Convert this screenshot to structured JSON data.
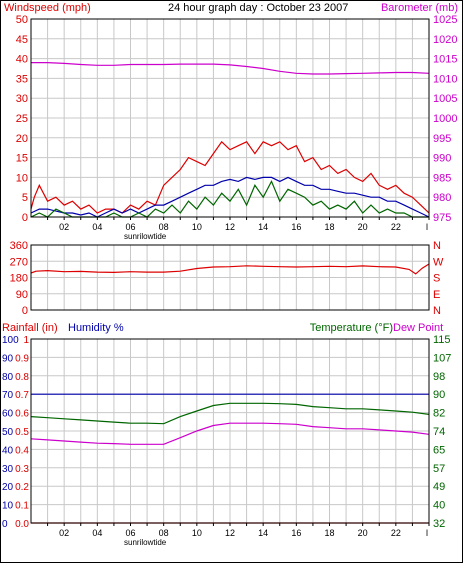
{
  "colors": {
    "red": "#dd0000",
    "blue": "#0000aa",
    "green": "#006600",
    "magenta": "#cc00cc",
    "grid": "#c8c8c8",
    "axis": "#000000"
  },
  "chart_data": [
    {
      "id": "wind_baro",
      "type": "line",
      "title": "24 hour graph day : October 23 2007",
      "left_label": "Windspeed (mph)",
      "right_label": "Barometer (mb)",
      "yleft_ticks": [
        "0",
        "5",
        "10",
        "15",
        "20",
        "25",
        "30",
        "35",
        "40",
        "45",
        "50"
      ],
      "yright_ticks": [
        "975",
        "980",
        "985",
        "990",
        "995",
        "1000",
        "1005",
        "1010",
        "1015",
        "1020",
        "1025"
      ],
      "x_ticks": [
        "02",
        "04",
        "06",
        "08",
        "10",
        "12",
        "14",
        "16",
        "18",
        "20",
        "22"
      ],
      "x_end_tick": "l",
      "x_sublabel": "sunrilowtide",
      "ylim_left": [
        0,
        50
      ],
      "ylim_right": [
        975,
        1025
      ],
      "xlim": [
        0,
        24
      ],
      "series": [
        {
          "key": "gust",
          "color_key": "red",
          "x": [
            0,
            0.2,
            0.5,
            1,
            1.5,
            2,
            2.5,
            3,
            3.5,
            4,
            4.5,
            5,
            5.5,
            6,
            6.5,
            7,
            7.5,
            8,
            8.5,
            9,
            9.5,
            10,
            10.5,
            11,
            11.5,
            12,
            12.5,
            13,
            13.5,
            14,
            14.5,
            15,
            15.5,
            16,
            16.5,
            17,
            17.5,
            18,
            18.5,
            19,
            19.5,
            20,
            20.5,
            21,
            21.5,
            22,
            22.5,
            23,
            23.5,
            24
          ],
          "values": [
            2,
            5,
            8,
            4,
            5,
            3,
            4,
            2,
            3,
            1,
            2,
            2,
            1,
            3,
            2,
            4,
            3,
            8,
            10,
            12,
            15,
            14,
            13,
            16,
            19,
            17,
            18,
            19,
            16,
            19,
            18,
            19,
            17,
            18,
            14,
            15,
            12,
            13,
            11,
            12,
            10,
            9,
            11,
            8,
            7,
            8,
            6,
            5,
            3,
            1
          ]
        },
        {
          "key": "wind",
          "color_key": "blue",
          "x": [
            0,
            0.5,
            1,
            1.5,
            2,
            2.5,
            3,
            3.5,
            4,
            4.5,
            5,
            5.5,
            6,
            6.5,
            7,
            7.5,
            8,
            8.5,
            9,
            9.5,
            10,
            10.5,
            11,
            11.5,
            12,
            12.5,
            13,
            13.5,
            14,
            14.5,
            15,
            15.5,
            16,
            16.5,
            17,
            17.5,
            18,
            18.5,
            19,
            19.5,
            20,
            20.5,
            21,
            21.5,
            22,
            22.5,
            23,
            23.5,
            24
          ],
          "values": [
            1,
            2,
            2,
            1.5,
            1,
            1,
            0.5,
            1,
            0,
            1,
            2,
            1,
            2,
            1,
            2,
            3,
            3,
            4,
            5,
            6,
            7,
            8,
            8,
            9,
            9.5,
            9,
            10,
            9.5,
            10,
            10,
            9,
            10,
            9,
            8,
            8,
            7,
            7,
            6.5,
            6,
            6,
            5.5,
            5,
            5,
            4,
            4,
            3,
            2,
            1,
            0
          ]
        },
        {
          "key": "low",
          "color_key": "green",
          "x": [
            0,
            0.5,
            1,
            1.5,
            2,
            2.5,
            3,
            3.5,
            4,
            4.5,
            5,
            5.5,
            6,
            6.5,
            7,
            7.5,
            8,
            8.5,
            9,
            9.5,
            10,
            10.5,
            11,
            11.5,
            12,
            12.5,
            13,
            13.5,
            14,
            14.5,
            15,
            15.5,
            16,
            16.5,
            17,
            17.5,
            18,
            18.5,
            19,
            19.5,
            20,
            20.5,
            21,
            21.5,
            22,
            22.5,
            23,
            23.5,
            24
          ],
          "values": [
            0,
            1,
            0,
            2,
            1,
            0,
            0,
            0,
            0,
            0,
            1,
            0,
            0,
            1,
            0,
            2,
            1,
            3,
            1,
            4,
            2,
            5,
            3,
            6,
            4,
            7,
            3,
            8,
            5,
            9,
            4,
            7,
            6,
            5,
            3,
            4,
            2,
            3,
            2,
            4,
            1,
            3,
            1,
            2,
            1,
            1,
            0,
            0,
            0
          ]
        },
        {
          "key": "barometer",
          "color_key": "magenta",
          "axis": "right",
          "x": [
            0,
            1,
            2,
            3,
            4,
            5,
            6,
            7,
            8,
            9,
            10,
            11,
            12,
            13,
            14,
            15,
            16,
            17,
            18,
            19,
            20,
            21,
            22,
            23,
            24
          ],
          "values": [
            1014,
            1014,
            1013.8,
            1013.5,
            1013.3,
            1013.3,
            1013.5,
            1013.5,
            1013.5,
            1013.6,
            1013.6,
            1013.6,
            1013.4,
            1013,
            1012.5,
            1011.8,
            1011.3,
            1011.1,
            1011.1,
            1011.2,
            1011.3,
            1011.4,
            1011.5,
            1011.5,
            1011.3
          ]
        }
      ]
    },
    {
      "id": "wind_dir",
      "type": "line",
      "left_ticks": [
        "0",
        "90",
        "180",
        "270",
        "360"
      ],
      "right_ticks": [
        "N",
        "E",
        "S",
        "W",
        "N"
      ],
      "ylim": [
        0,
        360
      ],
      "xlim": [
        0,
        24
      ],
      "series": [
        {
          "key": "direction",
          "color_key": "red",
          "x": [
            0,
            0.3,
            1,
            2,
            3,
            4,
            5,
            6,
            7,
            8,
            9,
            10,
            11,
            12,
            13,
            14,
            15,
            16,
            17,
            18,
            19,
            20,
            21,
            22,
            22.8,
            23.2,
            23.6,
            24
          ],
          "values": [
            205,
            215,
            218,
            212,
            214,
            210,
            208,
            212,
            210,
            210,
            215,
            230,
            238,
            240,
            245,
            242,
            240,
            238,
            240,
            242,
            240,
            244,
            240,
            238,
            225,
            200,
            232,
            255
          ]
        }
      ]
    },
    {
      "id": "temp_hum",
      "type": "line",
      "label_rain": "Rainfall (in)",
      "label_humidity": "Humidity %",
      "label_temp": "Temperature (°F)",
      "label_dew": "Dew Point",
      "humidity_ticks": [
        "0",
        "10",
        "20",
        "30",
        "40",
        "50",
        "60",
        "70",
        "80",
        "90",
        "100"
      ],
      "rain_ticks": [
        "0.0",
        "0.1",
        "0.2",
        "0.3",
        "0.4",
        "0.5",
        "0.6",
        "0.7",
        "0.8",
        "0.9",
        "1"
      ],
      "temp_ticks": [
        "32",
        "40",
        "49",
        "57",
        "65",
        "74",
        "82",
        "90",
        "98",
        "107",
        "115"
      ],
      "x_ticks": [
        "02",
        "04",
        "06",
        "08",
        "10",
        "12",
        "14",
        "16",
        "18",
        "20",
        "22"
      ],
      "x_end_tick": "l",
      "x_sublabel": "sunrilowtide",
      "ylim_left": [
        0,
        100
      ],
      "ylim_right": [
        32,
        115
      ],
      "xlim": [
        0,
        24
      ],
      "series": [
        {
          "key": "rainfall",
          "color_key": "red",
          "x": [
            0,
            24
          ],
          "values": [
            0,
            0
          ]
        },
        {
          "key": "humidity",
          "color_key": "blue",
          "x": [
            0,
            24
          ],
          "values": [
            70,
            70
          ]
        },
        {
          "key": "temperature",
          "color_key": "green",
          "axis": "right",
          "x": [
            0,
            1,
            2,
            3,
            4,
            5,
            6,
            7,
            8,
            9,
            10,
            11,
            12,
            13,
            14,
            15,
            16,
            17,
            18,
            19,
            20,
            21,
            22,
            23,
            24
          ],
          "values": [
            80,
            79.5,
            79,
            78.5,
            78,
            77.5,
            77,
            77,
            76.8,
            80,
            82.5,
            85,
            86,
            86,
            86,
            85.8,
            85.5,
            84.5,
            84,
            83.5,
            83.5,
            83,
            82.5,
            82,
            81
          ]
        },
        {
          "key": "dewpoint",
          "color_key": "magenta",
          "axis": "right",
          "x": [
            0,
            1,
            2,
            3,
            4,
            5,
            6,
            7,
            8,
            9,
            10,
            11,
            12,
            13,
            14,
            15,
            16,
            17,
            18,
            19,
            20,
            21,
            22,
            23,
            24
          ],
          "values": [
            70,
            69.5,
            69,
            68.5,
            68,
            67.8,
            67.5,
            67.5,
            67.5,
            70.5,
            73.5,
            76,
            77,
            77,
            77,
            76.8,
            76.5,
            75.5,
            75,
            74.5,
            74.5,
            74,
            73.5,
            73,
            72
          ]
        }
      ]
    }
  ]
}
